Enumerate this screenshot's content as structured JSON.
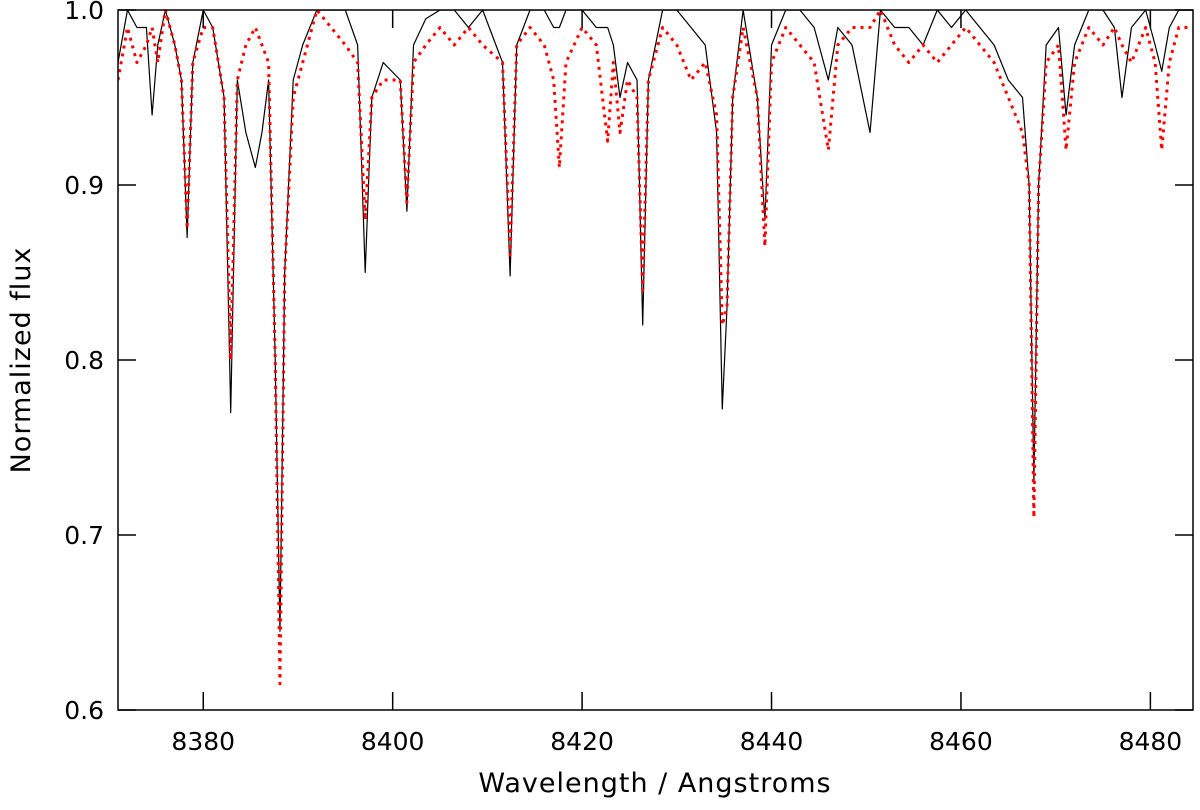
{
  "chart_data": {
    "type": "line",
    "xlabel": "Wavelength / Angstroms",
    "ylabel": "Normalized flux",
    "x": [
      8371,
      8372,
      8373,
      8374,
      8374.6,
      8375.2,
      8376,
      8377,
      8377.7,
      8378.3,
      8378.9,
      8380,
      8381,
      8382.2,
      8382.9,
      8383.6,
      8384.5,
      8385.5,
      8386.2,
      8386.9,
      8387.6,
      8388.1,
      8388.6,
      8389.5,
      8390.5,
      8392,
      8393.5,
      8395,
      8396.3,
      8397.1,
      8397.8,
      8399,
      8400.8,
      8401.5,
      8402.2,
      8403.5,
      8405,
      8406.5,
      8408,
      8409.5,
      8411.6,
      8412.4,
      8413.1,
      8414.5,
      8416,
      8417,
      8417.6,
      8418.3,
      8420,
      8421.5,
      8422.7,
      8423.3,
      8424,
      8424.8,
      8425.8,
      8426.4,
      8427,
      8428.5,
      8430,
      8431.5,
      8433,
      8434.2,
      8434.8,
      8435.3,
      8435.9,
      8437,
      8438.5,
      8439.3,
      8440,
      8441.5,
      8443,
      8444.5,
      8446,
      8447,
      8448.5,
      8450.4,
      8451.5,
      8453,
      8454.5,
      8456,
      8457.5,
      8459,
      8460.5,
      8462,
      8463.5,
      8465,
      8466.5,
      8467.2,
      8467.7,
      8468.2,
      8469,
      8470.3,
      8471.1,
      8472,
      8473.5,
      8475,
      8476.2,
      8477,
      8478,
      8479.5,
      8480.5,
      8481.2,
      8482,
      8483,
      8484.5
    ],
    "series": [
      {
        "color": "#000000",
        "dash": "solid",
        "values": [
          0.97,
          1.0,
          0.99,
          0.99,
          0.94,
          0.98,
          1.0,
          0.98,
          0.96,
          0.87,
          0.97,
          1.0,
          0.99,
          0.95,
          0.77,
          0.96,
          0.93,
          0.91,
          0.93,
          0.96,
          0.8,
          0.645,
          0.85,
          0.96,
          0.98,
          1.0,
          1.0,
          1.0,
          0.98,
          0.85,
          0.95,
          0.97,
          0.96,
          0.885,
          0.98,
          0.995,
          1.0,
          1.0,
          0.99,
          1.0,
          0.97,
          0.848,
          0.98,
          1.0,
          1.0,
          0.99,
          0.99,
          1.0,
          1.0,
          0.99,
          0.99,
          0.98,
          0.95,
          0.97,
          0.96,
          0.82,
          0.96,
          1.0,
          1.0,
          0.99,
          0.98,
          0.93,
          0.772,
          0.83,
          0.95,
          1.0,
          0.95,
          0.88,
          0.98,
          1.0,
          1.0,
          0.99,
          0.96,
          0.99,
          0.98,
          0.93,
          1.0,
          0.99,
          0.99,
          0.98,
          1.0,
          0.99,
          1.0,
          0.99,
          0.98,
          0.96,
          0.95,
          0.9,
          0.73,
          0.9,
          0.98,
          0.99,
          0.94,
          0.98,
          1.0,
          1.0,
          0.99,
          0.95,
          0.99,
          1.0,
          0.98,
          0.965,
          0.99,
          1.0,
          1.0
        ]
      },
      {
        "color": "#ff0000",
        "dash": "dotted",
        "values": [
          0.96,
          0.99,
          0.97,
          0.98,
          0.99,
          0.97,
          1.0,
          0.98,
          0.96,
          0.875,
          0.97,
          0.99,
          0.99,
          0.95,
          0.8,
          0.96,
          0.98,
          0.99,
          0.98,
          0.97,
          0.8,
          0.615,
          0.85,
          0.95,
          0.97,
          1.0,
          0.99,
          0.98,
          0.97,
          0.88,
          0.95,
          0.96,
          0.96,
          0.89,
          0.97,
          0.98,
          0.99,
          0.98,
          0.99,
          0.98,
          0.97,
          0.86,
          0.98,
          0.99,
          0.98,
          0.96,
          0.91,
          0.97,
          0.99,
          0.98,
          0.925,
          0.97,
          0.93,
          0.96,
          0.95,
          0.84,
          0.96,
          0.99,
          0.98,
          0.96,
          0.97,
          0.94,
          0.82,
          0.83,
          0.95,
          0.99,
          0.95,
          0.865,
          0.97,
          0.99,
          0.98,
          0.97,
          0.92,
          0.98,
          0.99,
          0.99,
          1.0,
          0.98,
          0.97,
          0.98,
          0.97,
          0.98,
          0.99,
          0.98,
          0.97,
          0.95,
          0.93,
          0.9,
          0.71,
          0.9,
          0.97,
          0.98,
          0.92,
          0.97,
          0.99,
          0.98,
          0.99,
          0.98,
          0.97,
          0.99,
          0.97,
          0.92,
          0.97,
          0.99,
          0.99
        ]
      }
    ],
    "xlim": [
      8371,
      8484.5
    ],
    "ylim": [
      0.6,
      1.0
    ],
    "xticks": [
      8380,
      8400,
      8420,
      8440,
      8460,
      8480
    ],
    "yticks": [
      0.6,
      0.7,
      0.8,
      0.9,
      {
        "value": 1.0,
        "label": "1.0"
      }
    ]
  }
}
